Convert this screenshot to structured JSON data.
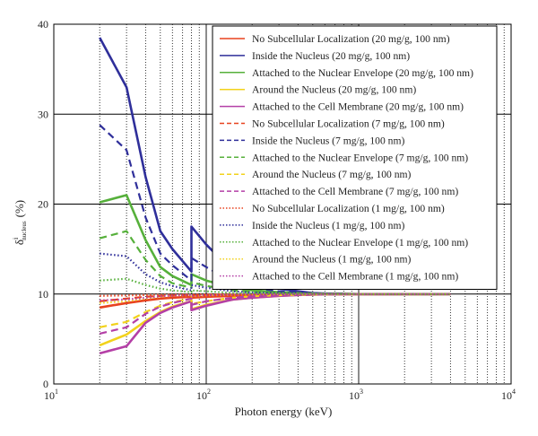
{
  "chart_data": {
    "type": "line",
    "xscale": "log",
    "xlim": [
      10,
      10000
    ],
    "ylim": [
      0,
      40
    ],
    "xlabel": "Photon energy (keV)",
    "ylabel_main": "δ",
    "ylabel_sup": "i",
    "ylabel_sub": "nucleus",
    "ylabel_unit": "(%)",
    "xticks": [
      {
        "value": 10,
        "base": "10",
        "exp": "1"
      },
      {
        "value": 100,
        "base": "10",
        "exp": "2"
      },
      {
        "value": 1000,
        "base": "10",
        "exp": "3"
      },
      {
        "value": 10000,
        "base": "10",
        "exp": "4"
      }
    ],
    "yticks": [
      "0",
      "10",
      "20",
      "30",
      "40"
    ],
    "grid": true,
    "legend_position": "top-right",
    "x": [
      20,
      30,
      40,
      50,
      60,
      80,
      80,
      100,
      150,
      200,
      300,
      400,
      500,
      600,
      800,
      1000,
      1500,
      2000,
      3000,
      4000
    ],
    "series": [
      {
        "name": "No Subcellular Localization (20 mg/g, 100 nm)",
        "color": "#e8421f",
        "style": "solid",
        "values": [
          8.5,
          9.0,
          9.3,
          9.5,
          9.6,
          9.7,
          9.6,
          9.7,
          9.8,
          9.85,
          9.9,
          9.92,
          9.95,
          9.96,
          9.97,
          9.98,
          9.98,
          9.99,
          9.99,
          10.0
        ]
      },
      {
        "name": "Inside the Nucleus (20 mg/g, 100 nm)",
        "color": "#2f2f9a",
        "style": "solid",
        "values": [
          38.5,
          33.0,
          23.0,
          17.0,
          15.0,
          12.5,
          17.5,
          15.5,
          12.5,
          11.2,
          10.6,
          10.3,
          10.1,
          10.05,
          10.02,
          10.0,
          10.0,
          10.0,
          10.0,
          10.0
        ]
      },
      {
        "name": "Attached to the Nuclear Envelope (20 mg/g, 100 nm)",
        "color": "#56b03b",
        "style": "solid",
        "values": [
          20.2,
          21.0,
          16.0,
          13.0,
          12.0,
          11.0,
          12.2,
          11.5,
          10.7,
          10.4,
          10.2,
          10.1,
          10.05,
          10.02,
          10.01,
          10.0,
          10.0,
          10.0,
          10.0,
          10.0
        ]
      },
      {
        "name": "Around the Nucleus (20 mg/g, 100 nm)",
        "color": "#f2d21b",
        "style": "solid",
        "values": [
          4.3,
          5.5,
          7.0,
          8.0,
          8.6,
          9.2,
          8.3,
          8.8,
          9.4,
          9.6,
          9.8,
          9.9,
          9.95,
          9.97,
          9.98,
          9.99,
          9.99,
          10.0,
          10.0,
          10.0
        ]
      },
      {
        "name": "Attached to the Cell Membrane (20 mg/g, 100 nm)",
        "color": "#b43fa6",
        "style": "solid",
        "values": [
          3.4,
          4.2,
          6.8,
          7.9,
          8.5,
          9.2,
          8.2,
          8.7,
          9.4,
          9.6,
          9.8,
          9.9,
          9.95,
          9.97,
          9.98,
          9.99,
          9.99,
          10.0,
          10.0,
          10.0
        ]
      },
      {
        "name": "No Subcellular Localization (7 mg/g, 100 nm)",
        "color": "#e8421f",
        "style": "dashed",
        "values": [
          9.2,
          9.5,
          9.7,
          9.8,
          9.85,
          9.9,
          9.85,
          9.9,
          9.95,
          9.97,
          9.98,
          9.99,
          9.99,
          10.0,
          10.0,
          10.0,
          10.0,
          10.0,
          10.0,
          10.0
        ]
      },
      {
        "name": "Inside the Nucleus (7 mg/g, 100 nm)",
        "color": "#2f2f9a",
        "style": "dashed",
        "values": [
          28.8,
          26.0,
          18.5,
          14.5,
          13.2,
          11.5,
          14.0,
          13.0,
          11.3,
          10.7,
          10.3,
          10.15,
          10.08,
          10.04,
          10.02,
          10.0,
          10.0,
          10.0,
          10.0,
          10.0
        ]
      },
      {
        "name": "Attached to the Nuclear Envelope (7 mg/g, 100 nm)",
        "color": "#56b03b",
        "style": "dashed",
        "values": [
          16.2,
          17.0,
          13.8,
          12.0,
          11.2,
          10.7,
          11.3,
          10.9,
          10.4,
          10.25,
          10.12,
          10.06,
          10.03,
          10.01,
          10.0,
          10.0,
          10.0,
          10.0,
          10.0,
          10.0
        ]
      },
      {
        "name": "Around the Nucleus (7 mg/g, 100 nm)",
        "color": "#f2d21b",
        "style": "dashed",
        "values": [
          6.3,
          6.9,
          8.0,
          8.7,
          9.1,
          9.5,
          8.9,
          9.2,
          9.6,
          9.75,
          9.88,
          9.93,
          9.96,
          9.98,
          9.99,
          10.0,
          10.0,
          10.0,
          10.0,
          10.0
        ]
      },
      {
        "name": "Attached to the Cell Membrane (7 mg/g, 100 nm)",
        "color": "#b43fa6",
        "style": "dashed",
        "values": [
          5.6,
          6.3,
          7.8,
          8.6,
          9.0,
          9.5,
          8.8,
          9.2,
          9.6,
          9.75,
          9.88,
          9.93,
          9.96,
          9.98,
          9.99,
          10.0,
          10.0,
          10.0,
          10.0,
          10.0
        ]
      },
      {
        "name": "No Subcellular Localization (1 mg/g, 100 nm)",
        "color": "#e8421f",
        "style": "dotted",
        "values": [
          9.8,
          9.85,
          9.9,
          9.92,
          9.94,
          9.96,
          9.95,
          9.96,
          9.98,
          9.99,
          10.0,
          10.0,
          10.0,
          10.0,
          10.0,
          10.0,
          10.0,
          10.0,
          10.0,
          10.0
        ]
      },
      {
        "name": "Inside the Nucleus (1 mg/g, 100 nm)",
        "color": "#2f2f9a",
        "style": "dotted",
        "values": [
          14.5,
          14.2,
          12.2,
          11.3,
          10.9,
          10.4,
          11.0,
          10.7,
          10.3,
          10.15,
          10.08,
          10.04,
          10.02,
          10.01,
          10.0,
          10.0,
          10.0,
          10.0,
          10.0,
          10.0
        ]
      },
      {
        "name": "Attached to the Nuclear Envelope (1 mg/g, 100 nm)",
        "color": "#56b03b",
        "style": "dotted",
        "values": [
          11.5,
          11.7,
          11.0,
          10.6,
          10.4,
          10.2,
          10.4,
          10.3,
          10.12,
          10.06,
          10.03,
          10.02,
          10.01,
          10.0,
          10.0,
          10.0,
          10.0,
          10.0,
          10.0,
          10.0
        ]
      },
      {
        "name": "Around the Nucleus (1 mg/g, 100 nm)",
        "color": "#f2d21b",
        "style": "dotted",
        "values": [
          9.0,
          9.2,
          9.5,
          9.7,
          9.8,
          9.88,
          9.75,
          9.85,
          9.93,
          9.96,
          9.98,
          9.99,
          10.0,
          10.0,
          10.0,
          10.0,
          10.0,
          10.0,
          10.0,
          10.0
        ]
      },
      {
        "name": "Attached to the Cell Membrane (1 mg/g, 100 nm)",
        "color": "#b43fa6",
        "style": "dotted",
        "values": [
          9.3,
          9.4,
          9.6,
          9.75,
          9.82,
          9.9,
          9.8,
          9.87,
          9.94,
          9.97,
          9.98,
          9.99,
          10.0,
          10.0,
          10.0,
          10.0,
          10.0,
          10.0,
          10.0,
          10.0
        ]
      }
    ]
  }
}
